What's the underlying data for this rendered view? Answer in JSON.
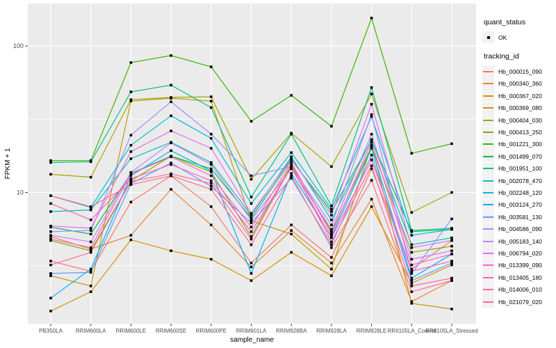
{
  "colors": {
    "panel_bg": "#EBEBEB",
    "grid": "#FFFFFF",
    "axis_text": "#4D4D4D",
    "tick": "#333333",
    "marker": "#000000",
    "legend_key_bg": "#F2F2F2"
  },
  "legend": {
    "quant_title": "quant_status",
    "quant_item": "OK",
    "tracking_title": "tracking_id"
  },
  "chart_data": {
    "type": "line",
    "title": "",
    "xlabel": "sample_name",
    "ylabel": "FPKM + 1",
    "y_scale": "log10",
    "ylim": [
      1.27,
      195
    ],
    "grid": "on",
    "legend_position": "right",
    "y_ticks": [
      {
        "label": "10",
        "value": 10
      },
      {
        "label": "100",
        "value": 100
      }
    ],
    "y_minor_ticks": [
      3.162,
      31.62
    ],
    "categories": [
      "PB350LA",
      "RRIM600LA",
      "RRIM600LE",
      "RRIM600SE",
      "RRIM600PE",
      "RRIM901LA",
      "RRIM928BA",
      "RRIM928LA",
      "RRIM928LE",
      "RRII105LA_Control",
      "RRII105LA_Stressed"
    ],
    "quant_status": "OK",
    "series": [
      {
        "name": "Hb_000015_090",
        "color": "#F8766D",
        "values": [
          3.4,
          2.9,
          8.6,
          13.0,
          8.0,
          3.3,
          6.0,
          3.6,
          14.5,
          3.0,
          4.7
        ]
      },
      {
        "name": "Hb_000340_360",
        "color": "#EA8331",
        "values": [
          5.0,
          4.1,
          5.1,
          10.5,
          6.0,
          3.1,
          5.5,
          3.3,
          9.0,
          1.8,
          2.5
        ]
      },
      {
        "name": "Hb_000367_020",
        "color": "#D89000",
        "values": [
          1.55,
          2.1,
          4.75,
          4.0,
          3.5,
          2.5,
          3.9,
          2.7,
          8.0,
          2.4,
          3.2
        ]
      },
      {
        "name": "Hb_000369_080",
        "color": "#C09B00",
        "values": [
          2.7,
          2.3,
          42.0,
          44.0,
          42.0,
          6.4,
          5.2,
          3.0,
          21.0,
          1.75,
          1.6
        ]
      },
      {
        "name": "Hb_000404_030",
        "color": "#A3A500",
        "values": [
          13.3,
          12.7,
          43.0,
          44.5,
          45.0,
          12.3,
          25.4,
          15.0,
          47.0,
          7.3,
          10.0
        ]
      },
      {
        "name": "Hb_000413_250",
        "color": "#7CAE00",
        "values": [
          4.7,
          4.0,
          12.0,
          17.7,
          13.8,
          5.0,
          15.5,
          5.4,
          20.5,
          3.9,
          4.3
        ]
      },
      {
        "name": "Hb_001221_300",
        "color": "#39B600",
        "values": [
          16.5,
          16.5,
          77.0,
          86.0,
          72.0,
          30.6,
          46.0,
          28.3,
          155.0,
          18.5,
          21.5
        ]
      },
      {
        "name": "Hb_001499_070",
        "color": "#00BB4E",
        "values": [
          5.8,
          5.2,
          13.5,
          17.7,
          14.5,
          6.7,
          16.7,
          7.4,
          22.7,
          5.4,
          5.6
        ]
      },
      {
        "name": "Hb_001951_100",
        "color": "#00C087",
        "values": [
          16.0,
          16.2,
          48.6,
          54.0,
          38.0,
          9.3,
          25.0,
          8.1,
          52.0,
          5.5,
          5.7
        ]
      },
      {
        "name": "Hb_002078_470",
        "color": "#00C0B8",
        "values": [
          7.4,
          7.6,
          17.0,
          22.0,
          16.0,
          7.0,
          17.5,
          6.5,
          23.0,
          4.4,
          4.9
        ]
      },
      {
        "name": "Hb_002248_120",
        "color": "#00BCD8",
        "values": [
          9.5,
          7.9,
          21.0,
          33.4,
          23.4,
          8.4,
          18.7,
          7.7,
          33.0,
          5.1,
          5.6
        ]
      },
      {
        "name": "Hb_003124_270",
        "color": "#00B0F6",
        "values": [
          1.9,
          3.0,
          13.0,
          19.3,
          14.0,
          2.8,
          13.5,
          5.0,
          20.0,
          2.6,
          3.8
        ]
      },
      {
        "name": "Hb_003581_130",
        "color": "#619CFF",
        "values": [
          2.8,
          2.85,
          11.5,
          15.9,
          11.0,
          6.2,
          12.5,
          4.4,
          18.0,
          2.5,
          3.3
        ]
      },
      {
        "name": "Hb_004586_090",
        "color": "#9590FF",
        "values": [
          5.4,
          5.5,
          24.6,
          41.6,
          25.0,
          13.0,
          15.0,
          6.0,
          34.0,
          2.8,
          6.6
        ]
      },
      {
        "name": "Hb_005183_140",
        "color": "#C77CFF",
        "values": [
          5.1,
          4.6,
          13.7,
          21.8,
          15.5,
          6.5,
          14.5,
          5.6,
          25.0,
          3.5,
          4.0
        ]
      },
      {
        "name": "Hb_006794_020",
        "color": "#E76BF3",
        "values": [
          5.9,
          5.7,
          19.0,
          26.3,
          20.0,
          7.2,
          17.0,
          7.0,
          40.0,
          4.2,
          4.7
        ]
      },
      {
        "name": "Hb_013399_090",
        "color": "#FD61D1",
        "values": [
          4.8,
          4.2,
          13.4,
          17.5,
          13.0,
          5.8,
          16.0,
          5.2,
          22.0,
          3.2,
          3.8
        ]
      },
      {
        "name": "Hb_013405_180",
        "color": "#FF62BC",
        "values": [
          8.4,
          6.5,
          12.4,
          15.5,
          12.0,
          5.4,
          14.8,
          4.9,
          16.7,
          2.9,
          3.4
        ]
      },
      {
        "name": "Hb_014006_010",
        "color": "#FF6A98",
        "values": [
          3.2,
          3.9,
          11.9,
          13.4,
          11.5,
          4.8,
          15.2,
          4.6,
          15.2,
          2.3,
          2.6
        ]
      },
      {
        "name": "Hb_021079_020",
        "color": "#FF6C91",
        "values": [
          9.5,
          8.0,
          11.3,
          13.0,
          10.5,
          4.4,
          13.0,
          4.2,
          12.1,
          2.1,
          2.5
        ]
      }
    ]
  }
}
